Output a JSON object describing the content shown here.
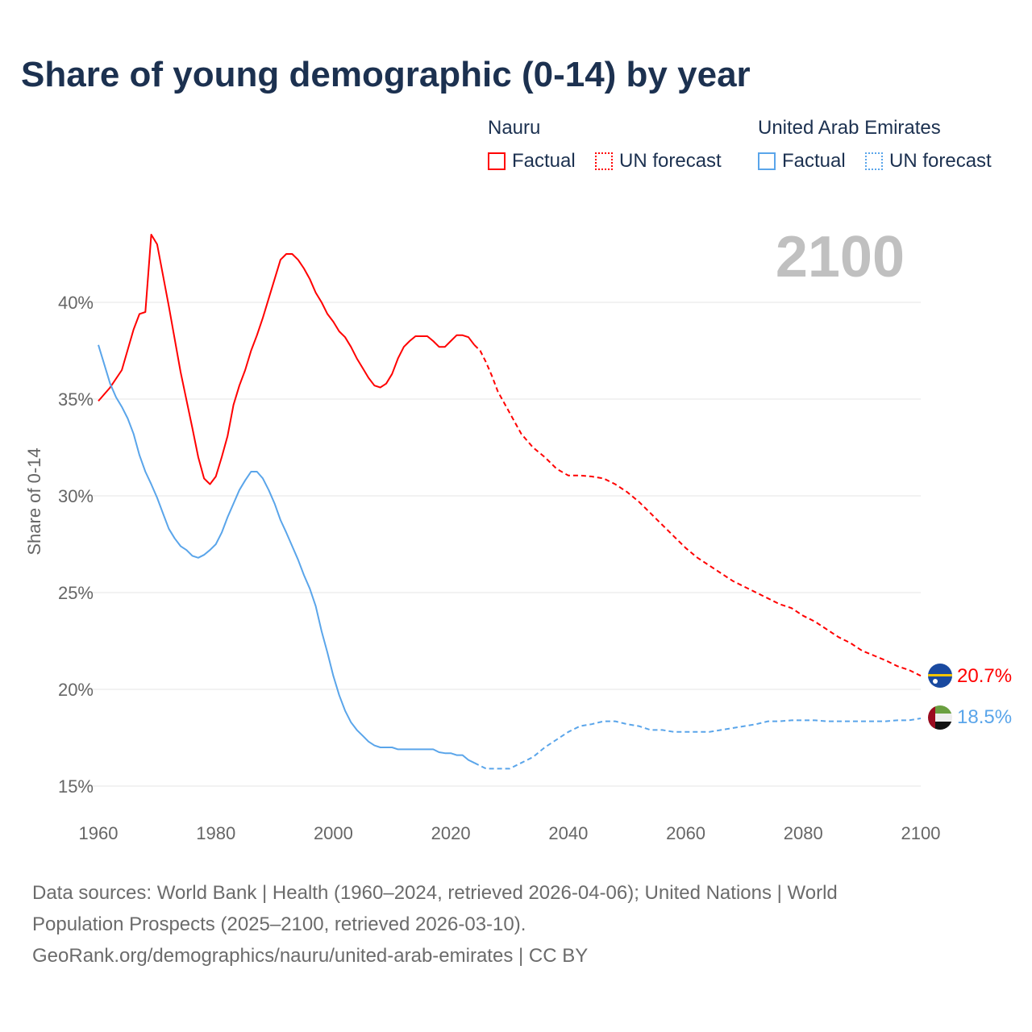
{
  "title": "Share of young demographic (0-14) by year",
  "legend": {
    "groups": [
      {
        "name": "Nauru",
        "color": "#ff0000",
        "factual_label": "Factual",
        "forecast_label": "UN forecast"
      },
      {
        "name": "United Arab Emirates",
        "color": "#5aa5ea",
        "factual_label": "Factual",
        "forecast_label": "UN forecast"
      }
    ]
  },
  "year_display": "2100",
  "footer": {
    "line1": "Data sources: World Bank | Health (1960–2024, retrieved 2026-04-06); United Nations | World",
    "line2": "Population Prospects (2025–2100, retrieved 2026-03-10).",
    "line3": "GeoRank.org/demographics/nauru/united-arab-emirates | CC BY"
  },
  "chart_data": {
    "type": "line",
    "title": "Share of young demographic (0-14) by year",
    "xlabel": "",
    "ylabel": "Share of 0-14",
    "xlim": [
      1960,
      2100
    ],
    "ylim": [
      15,
      40
    ],
    "x_ticks": [
      "1960",
      "1980",
      "2000",
      "2020",
      "2040",
      "2060",
      "2080",
      "2100"
    ],
    "y_ticks": [
      "15%",
      "20%",
      "25%",
      "30%",
      "35%",
      "40%"
    ],
    "grid": true,
    "series": [
      {
        "name": "Nauru",
        "color": "#ff0000",
        "end_label": "20.7%",
        "factual": {
          "x": [
            1960,
            1962,
            1964,
            1966,
            1967,
            1968,
            1969,
            1970,
            1972,
            1974,
            1976,
            1977,
            1978,
            1979,
            1980,
            1981,
            1982,
            1983,
            1984,
            1985,
            1986,
            1987,
            1988,
            1989,
            1990,
            1991,
            1992,
            1993,
            1994,
            1995,
            1996,
            1997,
            1998,
            1999,
            2000,
            2001,
            2002,
            2003,
            2004,
            2005,
            2006,
            2007,
            2008,
            2009,
            2010,
            2011,
            2012,
            2013,
            2014,
            2015,
            2016,
            2017,
            2018,
            2019,
            2020,
            2021,
            2022,
            2023,
            2024
          ],
          "y": [
            34.9,
            35.6,
            36.5,
            38.6,
            39.4,
            39.5,
            43.5,
            43.0,
            39.8,
            36.4,
            33.5,
            32.0,
            30.9,
            30.6,
            31.0,
            32.0,
            33.1,
            34.7,
            35.7,
            36.5,
            37.5,
            38.3,
            39.2,
            40.2,
            41.2,
            42.2,
            42.5,
            42.5,
            42.2,
            41.75,
            41.2,
            40.5,
            40.0,
            39.4,
            39.0,
            38.5,
            38.2,
            37.7,
            37.1,
            36.6,
            36.1,
            35.7,
            35.6,
            35.8,
            36.3,
            37.1,
            37.7,
            38.0,
            38.25,
            38.25,
            38.25,
            38.0,
            37.7,
            37.7,
            38.0,
            38.3,
            38.3,
            38.2,
            37.8
          ]
        },
        "forecast": {
          "x": [
            2024,
            2025,
            2026,
            2027,
            2028,
            2030,
            2032,
            2034,
            2036,
            2038,
            2040,
            2042,
            2044,
            2046,
            2048,
            2050,
            2052,
            2054,
            2056,
            2058,
            2060,
            2062,
            2064,
            2066,
            2068,
            2070,
            2072,
            2074,
            2076,
            2078,
            2080,
            2082,
            2084,
            2086,
            2088,
            2090,
            2092,
            2094,
            2096,
            2098,
            2100
          ],
          "y": [
            37.8,
            37.5,
            36.9,
            36.2,
            35.4,
            34.3,
            33.2,
            32.5,
            32.0,
            31.4,
            31.05,
            31.05,
            31.0,
            30.9,
            30.6,
            30.2,
            29.7,
            29.1,
            28.5,
            27.9,
            27.3,
            26.8,
            26.4,
            26.0,
            25.6,
            25.3,
            25.0,
            24.7,
            24.4,
            24.2,
            23.8,
            23.5,
            23.1,
            22.7,
            22.4,
            22.0,
            21.75,
            21.5,
            21.2,
            21.0,
            20.7
          ]
        }
      },
      {
        "name": "United Arab Emirates",
        "color": "#5aa5ea",
        "end_label": "18.5%",
        "factual": {
          "x": [
            1960,
            1961,
            1962,
            1963,
            1964,
            1965,
            1966,
            1967,
            1968,
            1969,
            1970,
            1971,
            1972,
            1973,
            1974,
            1975,
            1976,
            1977,
            1978,
            1979,
            1980,
            1981,
            1982,
            1983,
            1984,
            1985,
            1986,
            1987,
            1988,
            1989,
            1990,
            1991,
            1992,
            1993,
            1994,
            1995,
            1996,
            1997,
            1998,
            1999,
            2000,
            2001,
            2002,
            2003,
            2004,
            2005,
            2006,
            2007,
            2008,
            2009,
            2010,
            2011,
            2012,
            2013,
            2014,
            2015,
            2016,
            2017,
            2018,
            2019,
            2020,
            2021,
            2022,
            2023,
            2024
          ],
          "y": [
            37.8,
            36.8,
            35.8,
            35.1,
            34.6,
            34.0,
            33.2,
            32.1,
            31.25,
            30.6,
            29.9,
            29.1,
            28.3,
            27.8,
            27.4,
            27.2,
            26.9,
            26.8,
            26.95,
            27.2,
            27.5,
            28.1,
            28.9,
            29.6,
            30.3,
            30.8,
            31.25,
            31.25,
            30.9,
            30.3,
            29.6,
            28.75,
            28.1,
            27.4,
            26.7,
            25.9,
            25.2,
            24.3,
            23.0,
            21.9,
            20.7,
            19.7,
            18.9,
            18.3,
            17.9,
            17.6,
            17.3,
            17.1,
            17.0,
            17.0,
            17.0,
            16.9,
            16.9,
            16.9,
            16.9,
            16.9,
            16.9,
            16.9,
            16.75,
            16.7,
            16.7,
            16.6,
            16.6,
            16.35,
            16.2
          ]
        },
        "forecast": {
          "x": [
            2024,
            2025,
            2026,
            2028,
            2030,
            2032,
            2034,
            2036,
            2038,
            2040,
            2042,
            2044,
            2046,
            2048,
            2050,
            2052,
            2054,
            2056,
            2058,
            2060,
            2062,
            2064,
            2066,
            2068,
            2070,
            2072,
            2074,
            2076,
            2078,
            2080,
            2082,
            2084,
            2086,
            2088,
            2090,
            2092,
            2094,
            2096,
            2098,
            2100
          ],
          "y": [
            16.2,
            16.05,
            15.9,
            15.9,
            15.9,
            16.2,
            16.5,
            17.0,
            17.4,
            17.8,
            18.1,
            18.2,
            18.35,
            18.35,
            18.2,
            18.1,
            17.9,
            17.9,
            17.8,
            17.8,
            17.8,
            17.8,
            17.9,
            18.0,
            18.1,
            18.2,
            18.35,
            18.35,
            18.4,
            18.4,
            18.4,
            18.35,
            18.35,
            18.35,
            18.35,
            18.35,
            18.35,
            18.4,
            18.4,
            18.5
          ]
        }
      }
    ]
  }
}
